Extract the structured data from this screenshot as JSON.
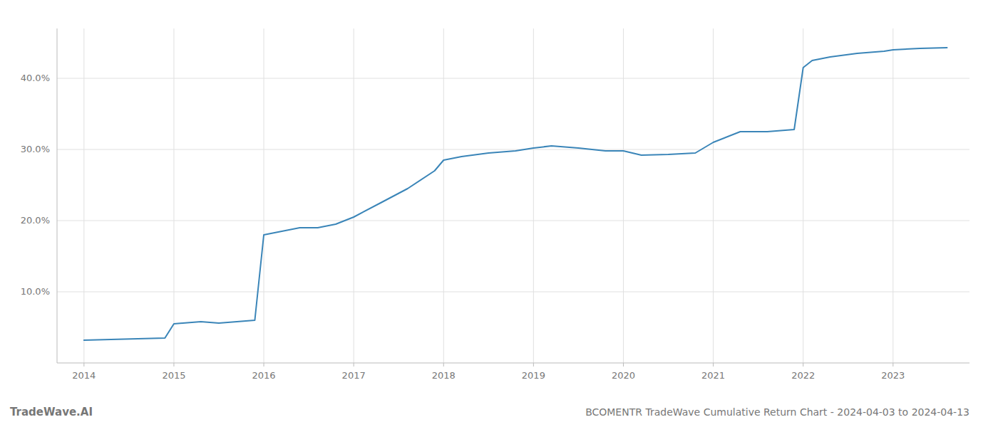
{
  "chart_data": {
    "type": "line",
    "title": "BCOMENTR TradeWave Cumulative Return Chart - 2024-04-03 to 2024-04-13",
    "annotations": [
      "TradeWave.AI"
    ],
    "color": "#3a85b8",
    "grid": true,
    "x": [
      2014.0,
      2014.3,
      2014.6,
      2014.9,
      2015.0,
      2015.1,
      2015.2,
      2015.3,
      2015.5,
      2015.7,
      2015.9,
      2016.0,
      2016.2,
      2016.4,
      2016.6,
      2016.8,
      2017.0,
      2017.3,
      2017.6,
      2017.9,
      2018.0,
      2018.2,
      2018.5,
      2018.8,
      2019.0,
      2019.2,
      2019.5,
      2019.8,
      2020.0,
      2020.2,
      2020.5,
      2020.8,
      2021.0,
      2021.3,
      2021.6,
      2021.9,
      2022.0,
      2022.1,
      2022.3,
      2022.6,
      2022.9,
      2023.0,
      2023.3,
      2023.6
    ],
    "values": [
      3.2,
      3.3,
      3.4,
      3.5,
      5.5,
      5.6,
      5.7,
      5.8,
      5.6,
      5.8,
      6.0,
      18.0,
      18.5,
      19.0,
      19.0,
      19.5,
      20.5,
      22.5,
      24.5,
      27.0,
      28.5,
      29.0,
      29.5,
      29.8,
      30.2,
      30.5,
      30.2,
      29.8,
      29.8,
      29.2,
      29.3,
      29.5,
      31.0,
      32.5,
      32.5,
      32.8,
      41.5,
      42.5,
      43.0,
      43.5,
      43.8,
      44.0,
      44.2,
      44.3
    ],
    "xlim": [
      2013.7,
      2023.85
    ],
    "ylim": [
      0,
      47
    ],
    "xticks": [
      2014,
      2015,
      2016,
      2017,
      2018,
      2019,
      2020,
      2021,
      2022,
      2023
    ],
    "yticks": [
      {
        "value": 10.0,
        "label": "10.0%"
      },
      {
        "value": 20.0,
        "label": "20.0%"
      },
      {
        "value": 30.0,
        "label": "30.0%"
      },
      {
        "value": 40.0,
        "label": "40.0%"
      }
    ]
  }
}
